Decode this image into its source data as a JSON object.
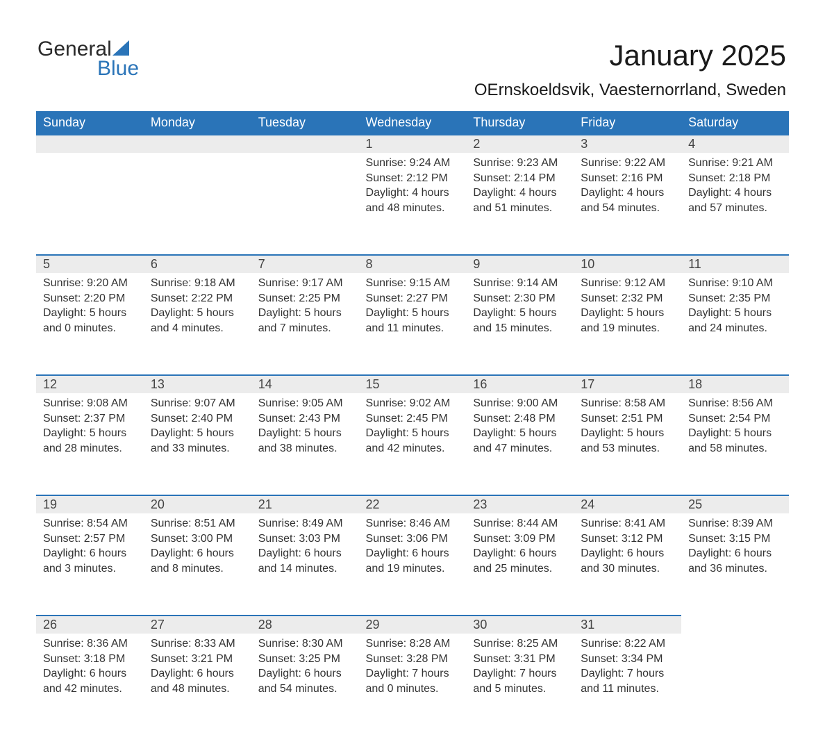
{
  "logo": {
    "word1": "General",
    "word2": "Blue"
  },
  "title": "January 2025",
  "subtitle": "OErnskoeldsvik, Vaesternorrland, Sweden",
  "colors": {
    "header_bg": "#2a74b8",
    "header_fg": "#ffffff",
    "daynum_bg": "#ececec",
    "daynum_border": "#2a74b8",
    "text": "#333333",
    "page_bg": "#ffffff"
  },
  "typography": {
    "title_fontsize": 42,
    "subtitle_fontsize": 24,
    "header_fontsize": 18,
    "daynum_fontsize": 18,
    "body_fontsize": 16
  },
  "day_headers": [
    "Sunday",
    "Monday",
    "Tuesday",
    "Wednesday",
    "Thursday",
    "Friday",
    "Saturday"
  ],
  "weeks": [
    [
      null,
      null,
      null,
      {
        "n": "1",
        "sunrise": "9:24 AM",
        "sunset": "2:12 PM",
        "daylight": "4 hours and 48 minutes."
      },
      {
        "n": "2",
        "sunrise": "9:23 AM",
        "sunset": "2:14 PM",
        "daylight": "4 hours and 51 minutes."
      },
      {
        "n": "3",
        "sunrise": "9:22 AM",
        "sunset": "2:16 PM",
        "daylight": "4 hours and 54 minutes."
      },
      {
        "n": "4",
        "sunrise": "9:21 AM",
        "sunset": "2:18 PM",
        "daylight": "4 hours and 57 minutes."
      }
    ],
    [
      {
        "n": "5",
        "sunrise": "9:20 AM",
        "sunset": "2:20 PM",
        "daylight": "5 hours and 0 minutes."
      },
      {
        "n": "6",
        "sunrise": "9:18 AM",
        "sunset": "2:22 PM",
        "daylight": "5 hours and 4 minutes."
      },
      {
        "n": "7",
        "sunrise": "9:17 AM",
        "sunset": "2:25 PM",
        "daylight": "5 hours and 7 minutes."
      },
      {
        "n": "8",
        "sunrise": "9:15 AM",
        "sunset": "2:27 PM",
        "daylight": "5 hours and 11 minutes."
      },
      {
        "n": "9",
        "sunrise": "9:14 AM",
        "sunset": "2:30 PM",
        "daylight": "5 hours and 15 minutes."
      },
      {
        "n": "10",
        "sunrise": "9:12 AM",
        "sunset": "2:32 PM",
        "daylight": "5 hours and 19 minutes."
      },
      {
        "n": "11",
        "sunrise": "9:10 AM",
        "sunset": "2:35 PM",
        "daylight": "5 hours and 24 minutes."
      }
    ],
    [
      {
        "n": "12",
        "sunrise": "9:08 AM",
        "sunset": "2:37 PM",
        "daylight": "5 hours and 28 minutes."
      },
      {
        "n": "13",
        "sunrise": "9:07 AM",
        "sunset": "2:40 PM",
        "daylight": "5 hours and 33 minutes."
      },
      {
        "n": "14",
        "sunrise": "9:05 AM",
        "sunset": "2:43 PM",
        "daylight": "5 hours and 38 minutes."
      },
      {
        "n": "15",
        "sunrise": "9:02 AM",
        "sunset": "2:45 PM",
        "daylight": "5 hours and 42 minutes."
      },
      {
        "n": "16",
        "sunrise": "9:00 AM",
        "sunset": "2:48 PM",
        "daylight": "5 hours and 47 minutes."
      },
      {
        "n": "17",
        "sunrise": "8:58 AM",
        "sunset": "2:51 PM",
        "daylight": "5 hours and 53 minutes."
      },
      {
        "n": "18",
        "sunrise": "8:56 AM",
        "sunset": "2:54 PM",
        "daylight": "5 hours and 58 minutes."
      }
    ],
    [
      {
        "n": "19",
        "sunrise": "8:54 AM",
        "sunset": "2:57 PM",
        "daylight": "6 hours and 3 minutes."
      },
      {
        "n": "20",
        "sunrise": "8:51 AM",
        "sunset": "3:00 PM",
        "daylight": "6 hours and 8 minutes."
      },
      {
        "n": "21",
        "sunrise": "8:49 AM",
        "sunset": "3:03 PM",
        "daylight": "6 hours and 14 minutes."
      },
      {
        "n": "22",
        "sunrise": "8:46 AM",
        "sunset": "3:06 PM",
        "daylight": "6 hours and 19 minutes."
      },
      {
        "n": "23",
        "sunrise": "8:44 AM",
        "sunset": "3:09 PM",
        "daylight": "6 hours and 25 minutes."
      },
      {
        "n": "24",
        "sunrise": "8:41 AM",
        "sunset": "3:12 PM",
        "daylight": "6 hours and 30 minutes."
      },
      {
        "n": "25",
        "sunrise": "8:39 AM",
        "sunset": "3:15 PM",
        "daylight": "6 hours and 36 minutes."
      }
    ],
    [
      {
        "n": "26",
        "sunrise": "8:36 AM",
        "sunset": "3:18 PM",
        "daylight": "6 hours and 42 minutes."
      },
      {
        "n": "27",
        "sunrise": "8:33 AM",
        "sunset": "3:21 PM",
        "daylight": "6 hours and 48 minutes."
      },
      {
        "n": "28",
        "sunrise": "8:30 AM",
        "sunset": "3:25 PM",
        "daylight": "6 hours and 54 minutes."
      },
      {
        "n": "29",
        "sunrise": "8:28 AM",
        "sunset": "3:28 PM",
        "daylight": "7 hours and 0 minutes."
      },
      {
        "n": "30",
        "sunrise": "8:25 AM",
        "sunset": "3:31 PM",
        "daylight": "7 hours and 5 minutes."
      },
      {
        "n": "31",
        "sunrise": "8:22 AM",
        "sunset": "3:34 PM",
        "daylight": "7 hours and 11 minutes."
      },
      null
    ]
  ],
  "labels": {
    "sunrise": "Sunrise: ",
    "sunset": "Sunset: ",
    "daylight": "Daylight: "
  }
}
